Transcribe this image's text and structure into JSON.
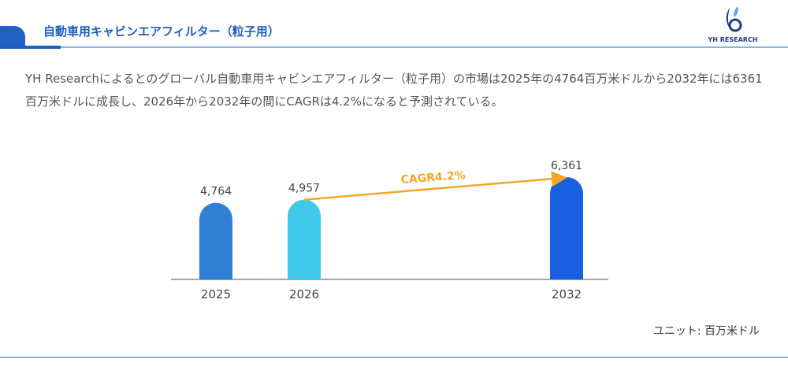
{
  "header": {
    "title": "自動車用キャビンエアフィルター（粒子用）",
    "logo_text": "YH RESEARCH"
  },
  "description": "YH Researchによるとのグローバル自動車用キャビンエアフィルター（粒子用）の市場は2025年の4764百万米ドルから2032年には6361百万米ドルに成長し、2026年から2032年の間にCAGRは4.2%になると予測されている。",
  "unit": "ユニット: 百万米ドル",
  "chart_data": {
    "type": "bar",
    "categories": [
      "2025",
      "2026",
      "2032"
    ],
    "values": [
      4764,
      4957,
      6361
    ],
    "value_labels": [
      "4,764",
      "4,957",
      "6,361"
    ],
    "colors": [
      "#2f7fd4",
      "#3ec9e8",
      "#1a5fe0"
    ],
    "annotation": {
      "text": "CAGR4.2%",
      "from": "2026",
      "to": "2032",
      "color": "#f5a623"
    },
    "ylim": [
      0,
      6361
    ],
    "grid": false
  }
}
